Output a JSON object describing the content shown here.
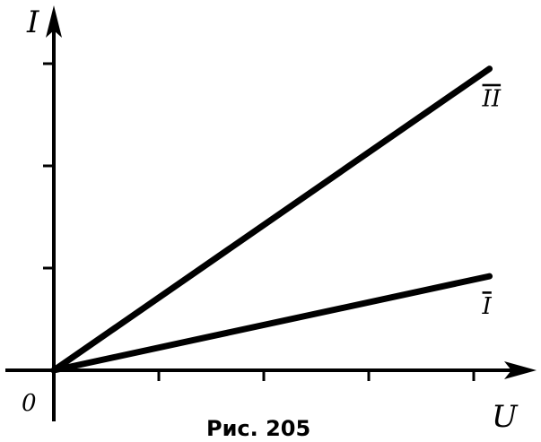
{
  "chart_data": {
    "type": "line",
    "ylabel": "I",
    "xlabel": "U",
    "origin_label": "0",
    "caption": "Рис. 205",
    "xlim": [
      0,
      4.4
    ],
    "ylim": [
      0,
      3.55
    ],
    "x_ticks": [
      1,
      2,
      3,
      4
    ],
    "y_ticks": [
      1,
      2,
      3
    ],
    "tick_labels_shown": false,
    "grid": false,
    "series": [
      {
        "name": "I",
        "x": [
          0,
          4.15
        ],
        "y": [
          0,
          0.92
        ]
      },
      {
        "name": "II",
        "x": [
          0,
          4.15
        ],
        "y": [
          0,
          2.95
        ]
      }
    ],
    "line_color": "#000000"
  }
}
